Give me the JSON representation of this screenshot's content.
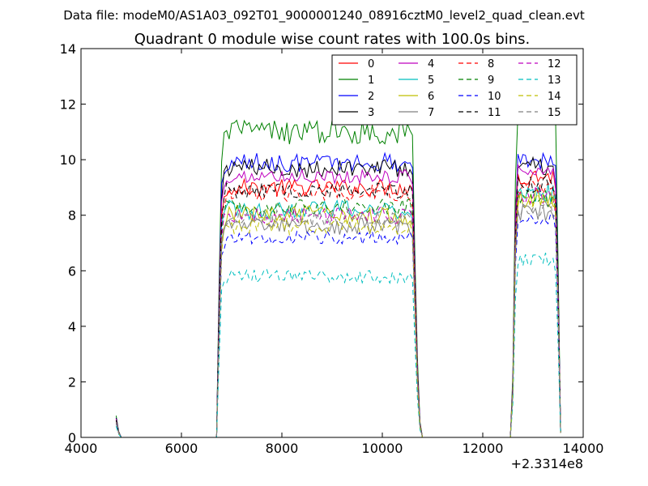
{
  "chart_data": {
    "type": "line",
    "suptitle": "Data file: modeM0/AS1A03_092T01_9000001240_08916cztM0_level2_quad_clean.evt",
    "title": "Quadrant 0 module wise count rates with 100.0s bins.",
    "x_offset_label": "+2.3314e8",
    "xlim": [
      4000,
      14000
    ],
    "ylim": [
      0,
      14
    ],
    "x_ticks": [
      4000,
      6000,
      8000,
      10000,
      12000,
      14000
    ],
    "y_ticks": [
      0,
      2,
      4,
      6,
      8,
      10,
      12,
      14
    ],
    "legend_position": "top-right",
    "legend_columns": 4,
    "gap_intervals": [
      [
        4900,
        6700
      ],
      [
        10800,
        12550
      ]
    ],
    "profile": {
      "x": [
        4700,
        4750,
        4800,
        4850,
        4900,
        6700,
        6750,
        6800,
        6850,
        6900,
        10550,
        10600,
        10650,
        10700,
        10750,
        10800,
        12550,
        12600,
        12650,
        12700,
        13400,
        13450,
        13500,
        13550
      ],
      "factor": [
        0.07,
        0.02,
        0.0,
        0.0,
        0.0,
        0.0,
        0.5,
        0.9,
        0.97,
        1.0,
        1.0,
        0.97,
        0.6,
        0.25,
        0.05,
        0.0,
        0.0,
        0.2,
        0.8,
        1.0,
        1.0,
        0.95,
        0.55,
        0.02
      ]
    },
    "series": [
      {
        "name": "0",
        "color": "#ff0000",
        "dash": "solid",
        "level1": 9.0,
        "level2": 9.4,
        "wiggle": 0.3
      },
      {
        "name": "1",
        "color": "#008000",
        "dash": "solid",
        "level1": 11.0,
        "level2": 11.9,
        "wiggle": 0.45
      },
      {
        "name": "2",
        "color": "#0000ff",
        "dash": "solid",
        "level1": 9.9,
        "level2": 10.0,
        "wiggle": 0.35
      },
      {
        "name": "3",
        "color": "#000000",
        "dash": "solid",
        "level1": 9.7,
        "level2": 9.8,
        "wiggle": 0.35
      },
      {
        "name": "4",
        "color": "#bf00bf",
        "dash": "solid",
        "level1": 9.4,
        "level2": 9.6,
        "wiggle": 0.25
      },
      {
        "name": "5",
        "color": "#00bfbf",
        "dash": "solid",
        "level1": 8.2,
        "level2": 8.8,
        "wiggle": 0.35
      },
      {
        "name": "6",
        "color": "#bfbf00",
        "dash": "solid",
        "level1": 8.0,
        "level2": 8.6,
        "wiggle": 0.35
      },
      {
        "name": "7",
        "color": "#808080",
        "dash": "solid",
        "level1": 7.6,
        "level2": 8.1,
        "wiggle": 0.3
      },
      {
        "name": "8",
        "color": "#ff0000",
        "dash": "dashed",
        "level1": 8.8,
        "level2": 9.0,
        "wiggle": 0.3
      },
      {
        "name": "9",
        "color": "#008000",
        "dash": "dashed",
        "level1": 8.3,
        "level2": 8.6,
        "wiggle": 0.3
      },
      {
        "name": "10",
        "color": "#0000ff",
        "dash": "dashed",
        "level1": 7.2,
        "level2": 7.8,
        "wiggle": 0.25
      },
      {
        "name": "11",
        "color": "#000000",
        "dash": "dashed",
        "level1": 8.9,
        "level2": 9.1,
        "wiggle": 0.3
      },
      {
        "name": "12",
        "color": "#bf00bf",
        "dash": "dashed",
        "level1": 8.0,
        "level2": 8.7,
        "wiggle": 0.3
      },
      {
        "name": "13",
        "color": "#00bfbf",
        "dash": "dashed",
        "level1": 5.8,
        "level2": 6.4,
        "wiggle": 0.25
      },
      {
        "name": "14",
        "color": "#bfbf00",
        "dash": "dashed",
        "level1": 7.6,
        "level2": 8.5,
        "wiggle": 0.3
      },
      {
        "name": "15",
        "color": "#808080",
        "dash": "dashed",
        "level1": 7.9,
        "level2": 8.2,
        "wiggle": 0.3
      }
    ]
  }
}
